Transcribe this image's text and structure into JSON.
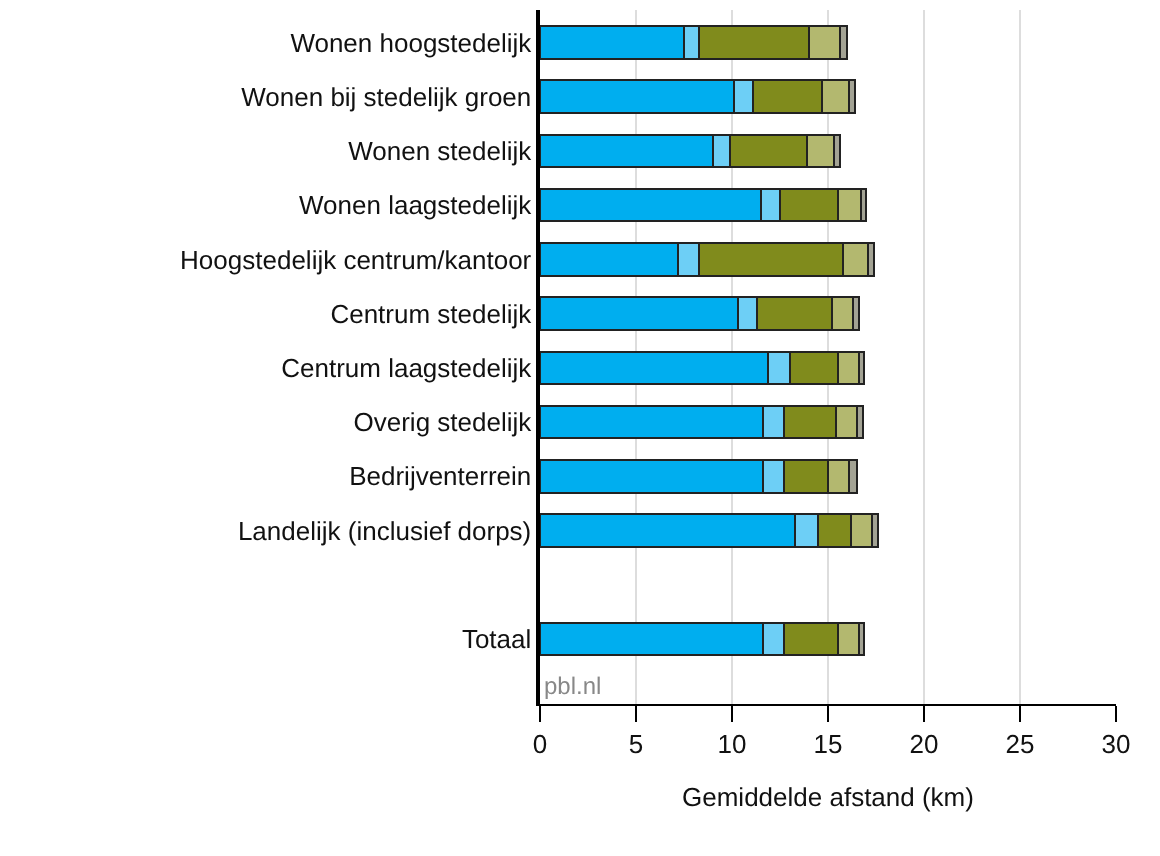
{
  "chart_data": {
    "type": "bar",
    "orientation": "horizontal",
    "stacked": true,
    "xlabel": "Gemiddelde afstand (km)",
    "categories": [
      "Wonen hoogstedelijk",
      "Wonen bij stedelijk groen",
      "Wonen stedelijk",
      "Wonen laagstedelijk",
      "Hoogstedelijk centrum/kantoor",
      "Centrum stedelijk",
      "Centrum laagstedelijk",
      "Overig stedelijk",
      "Bedrijventerrein",
      "Landelijk (inclusief dorps)",
      null,
      "Totaal"
    ],
    "series": [
      {
        "color": "#00aeef",
        "values": [
          7.5,
          10.1,
          9.0,
          11.5,
          7.2,
          10.3,
          11.9,
          11.6,
          11.6,
          13.3,
          null,
          11.6
        ]
      },
      {
        "color": "#6dcff6",
        "values": [
          0.8,
          1.0,
          0.9,
          1.0,
          1.1,
          1.0,
          1.1,
          1.1,
          1.1,
          1.2,
          null,
          1.1
        ]
      },
      {
        "color": "#808b1c",
        "values": [
          5.7,
          3.6,
          4.0,
          3.0,
          7.5,
          3.9,
          2.5,
          2.7,
          2.3,
          1.7,
          null,
          2.8
        ]
      },
      {
        "color": "#b3b86f",
        "values": [
          1.6,
          1.4,
          1.4,
          1.2,
          1.3,
          1.1,
          1.1,
          1.1,
          1.1,
          1.1,
          null,
          1.1
        ]
      },
      {
        "color": "#a3a394",
        "values": [
          0.4,
          0.3,
          0.3,
          0.3,
          0.3,
          0.3,
          0.3,
          0.3,
          0.4,
          0.3,
          null,
          0.3
        ]
      }
    ],
    "xlim": [
      0,
      30
    ],
    "xticks": [
      0,
      5,
      10,
      15,
      20,
      25,
      30
    ],
    "grid": "x",
    "annotations": [
      "pbl.nl"
    ]
  }
}
